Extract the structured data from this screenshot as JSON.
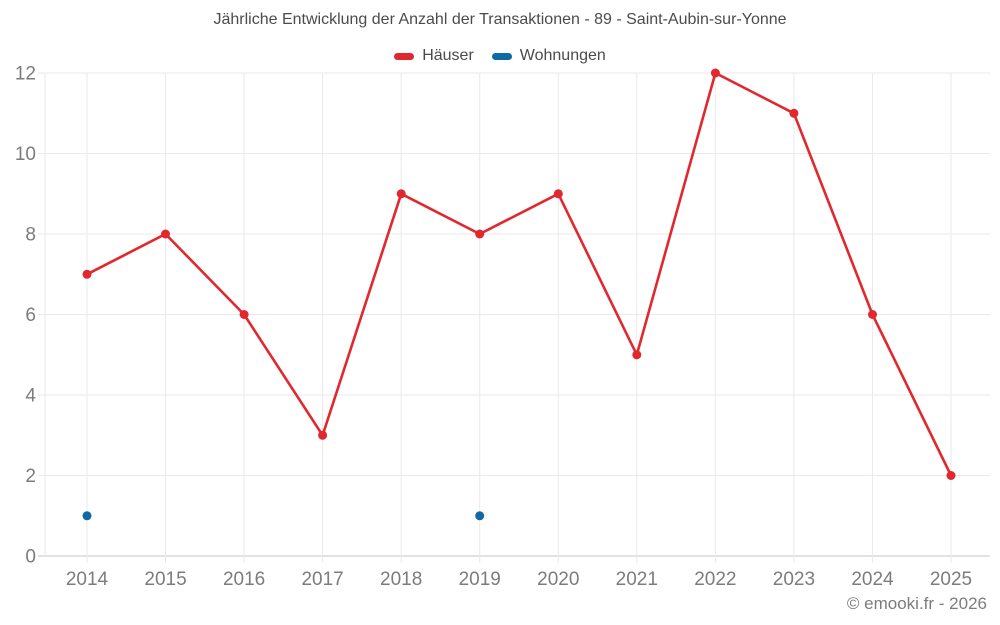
{
  "header": {
    "title": "Jährliche Entwicklung der Anzahl der Transaktionen - 89 - Saint-Aubin-sur-Yonne"
  },
  "footer": {
    "copyright": "© emooki.fr - 2026"
  },
  "colors": {
    "hauser_red": "#e0282e",
    "wohnungen_blue": "#0f69a2",
    "grid": "#eaeaea",
    "axis_line": "#c4c4c4",
    "tick_label": "#7c7c7c",
    "title_text": "#4b4b4b"
  },
  "chart_data": {
    "type": "line",
    "title": "Jährliche Entwicklung der Anzahl der Transaktionen - 89 - Saint-Aubin-sur-Yonne",
    "categories": [
      "2014",
      "2015",
      "2016",
      "2017",
      "2018",
      "2019",
      "2020",
      "2021",
      "2022",
      "2023",
      "2024",
      "2025"
    ],
    "series": [
      {
        "name": "Häuser",
        "color": "#e0282e",
        "draw_line": true,
        "values": [
          7,
          8,
          6,
          3,
          9,
          8,
          9,
          5,
          12,
          11,
          6,
          2
        ]
      },
      {
        "name": "Wohnungen",
        "color": "#0f69a2",
        "draw_line": false,
        "values": [
          1,
          null,
          null,
          null,
          null,
          1,
          null,
          null,
          null,
          null,
          null,
          null
        ]
      }
    ],
    "xlabel": "",
    "ylabel": "",
    "ylim": [
      0,
      12
    ],
    "yticks": [
      0,
      2,
      4,
      6,
      8,
      10,
      12
    ],
    "grid": true,
    "legend_position": "top"
  }
}
